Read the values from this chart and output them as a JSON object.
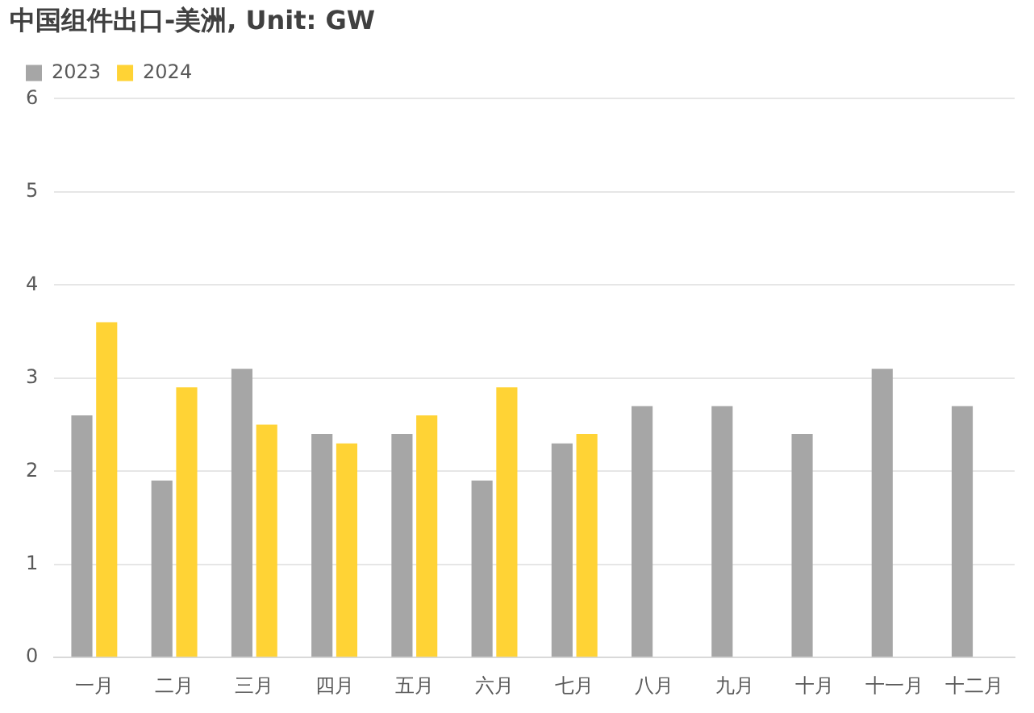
{
  "chart_data": {
    "type": "bar",
    "title": "中国组件出口-美洲, Unit: GW",
    "categories": [
      "一月",
      "二月",
      "三月",
      "四月",
      "五月",
      "六月",
      "七月",
      "八月",
      "九月",
      "十月",
      "十一月",
      "十二月"
    ],
    "series": [
      {
        "name": "2023",
        "color": "#a6a6a6",
        "values": [
          2.6,
          1.9,
          3.1,
          2.4,
          2.4,
          1.9,
          2.3,
          2.7,
          2.7,
          2.4,
          3.1,
          2.7
        ]
      },
      {
        "name": "2024",
        "color": "#ffd335",
        "values": [
          3.6,
          2.9,
          2.5,
          2.3,
          2.6,
          2.9,
          2.4,
          null,
          null,
          null,
          null,
          null
        ]
      }
    ],
    "ylim": [
      0,
      6
    ],
    "yticks": [
      0,
      1,
      2,
      3,
      4,
      5,
      6
    ],
    "grid": "y",
    "legend": "top left"
  }
}
